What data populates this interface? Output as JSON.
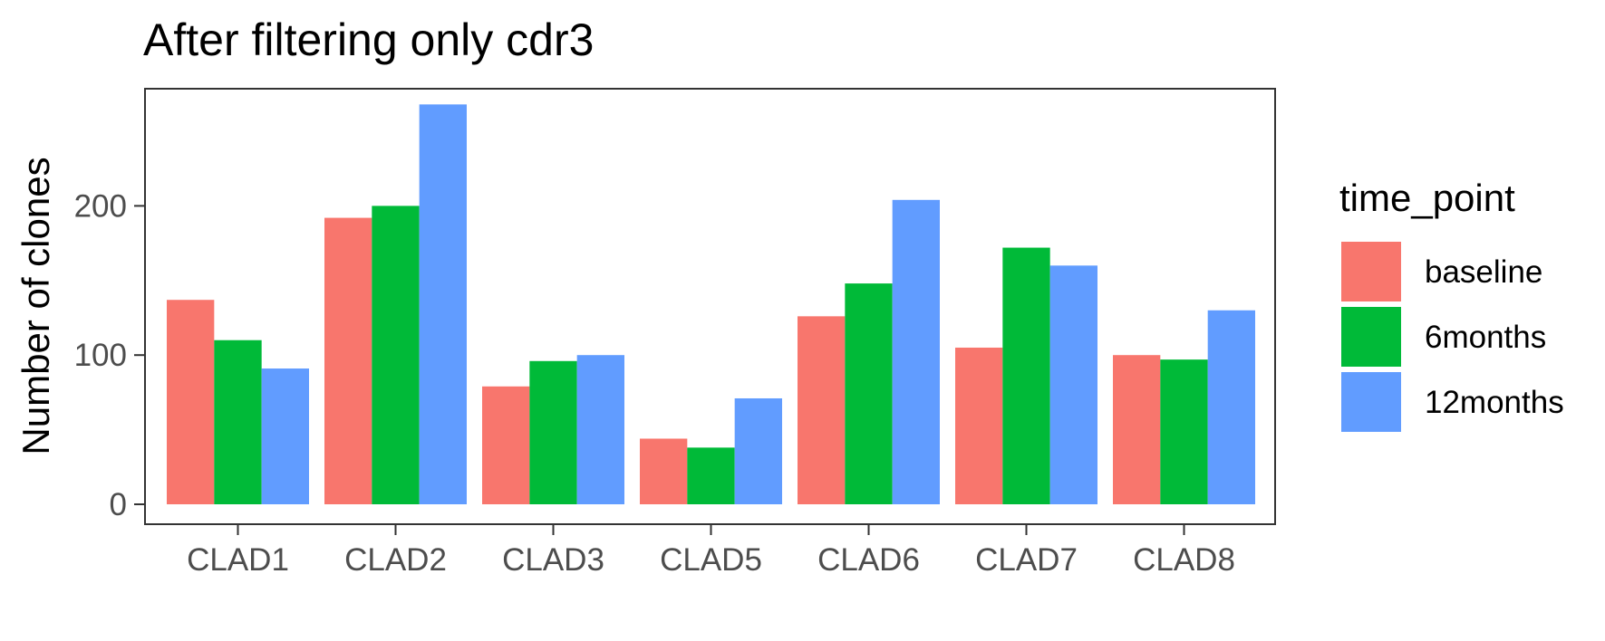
{
  "chart_data": {
    "type": "bar",
    "title": "After filtering only cdr3",
    "xlabel": "",
    "ylabel": "Number of clones",
    "categories": [
      "CLAD1",
      "CLAD2",
      "CLAD3",
      "CLAD5",
      "CLAD6",
      "CLAD7",
      "CLAD8"
    ],
    "series": [
      {
        "name": "baseline",
        "color": "#F8766D",
        "values": [
          137,
          192,
          79,
          44,
          126,
          105,
          100
        ]
      },
      {
        "name": "6months",
        "color": "#00BA38",
        "values": [
          110,
          200,
          96,
          38,
          148,
          172,
          97
        ]
      },
      {
        "name": "12months",
        "color": "#619CFF",
        "values": [
          91,
          268,
          100,
          71,
          204,
          160,
          130
        ]
      }
    ],
    "ylim": [
      0,
      280
    ],
    "yticks": [
      0,
      100,
      200
    ],
    "legend": {
      "title": "time_point",
      "position": "right"
    },
    "grid": false
  }
}
